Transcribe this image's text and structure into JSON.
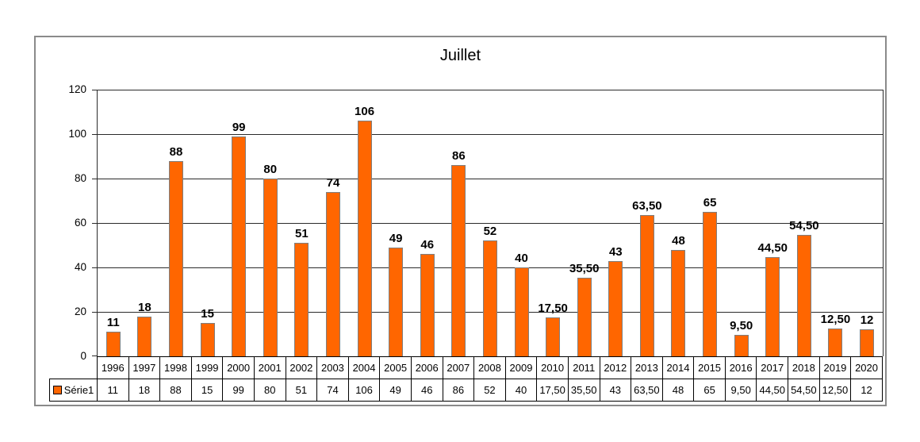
{
  "chart_data": {
    "type": "bar",
    "title": "Juillet",
    "series_name": "Série1",
    "categories": [
      "1996",
      "1997",
      "1998",
      "1999",
      "2000",
      "2001",
      "2002",
      "2003",
      "2004",
      "2005",
      "2006",
      "2007",
      "2008",
      "2009",
      "2010",
      "2011",
      "2012",
      "2013",
      "2014",
      "2015",
      "2016",
      "2017",
      "2018",
      "2019",
      "2020"
    ],
    "values": [
      11,
      18,
      88,
      15,
      99,
      80,
      51,
      74,
      106,
      49,
      46,
      86,
      52,
      40,
      17.5,
      35.5,
      43,
      63.5,
      48,
      65,
      9.5,
      44.5,
      54.5,
      12.5,
      12
    ],
    "value_labels": [
      "11",
      "18",
      "88",
      "15",
      "99",
      "80",
      "51",
      "74",
      "106",
      "49",
      "46",
      "86",
      "52",
      "40",
      "17,50",
      "35,50",
      "43",
      "63,50",
      "48",
      "65",
      "9,50",
      "44,50",
      "54,50",
      "12,50",
      "12"
    ],
    "ylim": [
      0,
      120
    ],
    "yticks": [
      0,
      20,
      40,
      60,
      80,
      100,
      120
    ],
    "grid": "horizontal",
    "legend_position": "bottom-table",
    "colors": {
      "bar_fill": "#FF6600",
      "bar_border": "#7f7f7f",
      "frame_border": "#8a8a8a",
      "grid_color": "#2b2b2b",
      "text": "#000000"
    }
  }
}
